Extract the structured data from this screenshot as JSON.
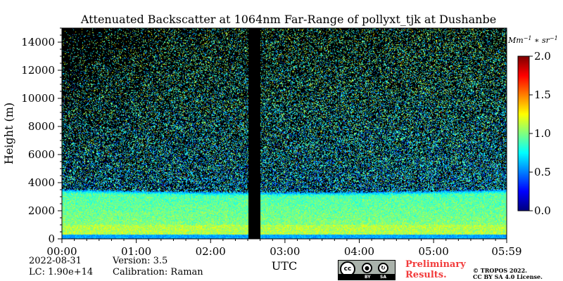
{
  "chart_data": {
    "type": "heatmap",
    "title": "Attenuated Backscatter at 1064nm Far-Range of pollyxt_tjk at Dushanbe",
    "ylabel": "Height (m)",
    "xlabel": "UTC",
    "x_tick_labels": [
      "00:00",
      "01:00",
      "02:00",
      "03:00",
      "04:00",
      "05:00",
      "05:59"
    ],
    "x_range_minutes": [
      0,
      359
    ],
    "x_tick_minutes": [
      0,
      60,
      120,
      180,
      240,
      300,
      359
    ],
    "y_ticks": [
      0,
      2000,
      4000,
      6000,
      8000,
      10000,
      12000,
      14000
    ],
    "y_tick_labels": [
      "0",
      "2000",
      "4000",
      "6000",
      "8000",
      "10000",
      "12000",
      "14000"
    ],
    "ylim": [
      0,
      15000
    ],
    "colorbar": {
      "unit_label": "Mm",
      "unit_exp1": "−1",
      "unit_mid": " ∗ sr",
      "unit_exp2": "−1",
      "ticks": [
        0.0,
        0.5,
        1.0,
        1.5,
        2.0
      ],
      "tick_labels": [
        "0.0",
        "0.5",
        "1.0",
        "1.5",
        "2.0"
      ],
      "range": [
        0.0,
        2.0
      ],
      "colormap": "jet"
    },
    "data_gap_minutes": [
      150,
      160
    ],
    "layers": [
      {
        "top_m": 3500,
        "typical_value": 1.0,
        "note": "aerosol layer, uniform green"
      },
      {
        "top_m": 1000,
        "typical_value": 1.1,
        "note": "brighter near-surface band"
      },
      {
        "top_m": 300,
        "typical_value": 0.45,
        "note": "incomplete overlap near surface"
      }
    ],
    "background_noise": "sparse speckle above 3500 m, denser toward the right",
    "grid": false
  },
  "footer": {
    "date": "2022-08-31",
    "lc": "LC: 1.90e+14",
    "version": "Version: 3.5",
    "calibration": "Calibration: Raman",
    "preliminary_line1": "Preliminary",
    "preliminary_line2": "Results.",
    "copyright_line1": "© TROPOS 2022.",
    "copyright_line2": "CC BY SA 4.0 License.",
    "cc_badge": {
      "cc": "cc",
      "by": "BY",
      "sa": "SA"
    }
  },
  "colors": {
    "noise_floor": "#000000",
    "preliminary_red": "#f23b3b"
  }
}
